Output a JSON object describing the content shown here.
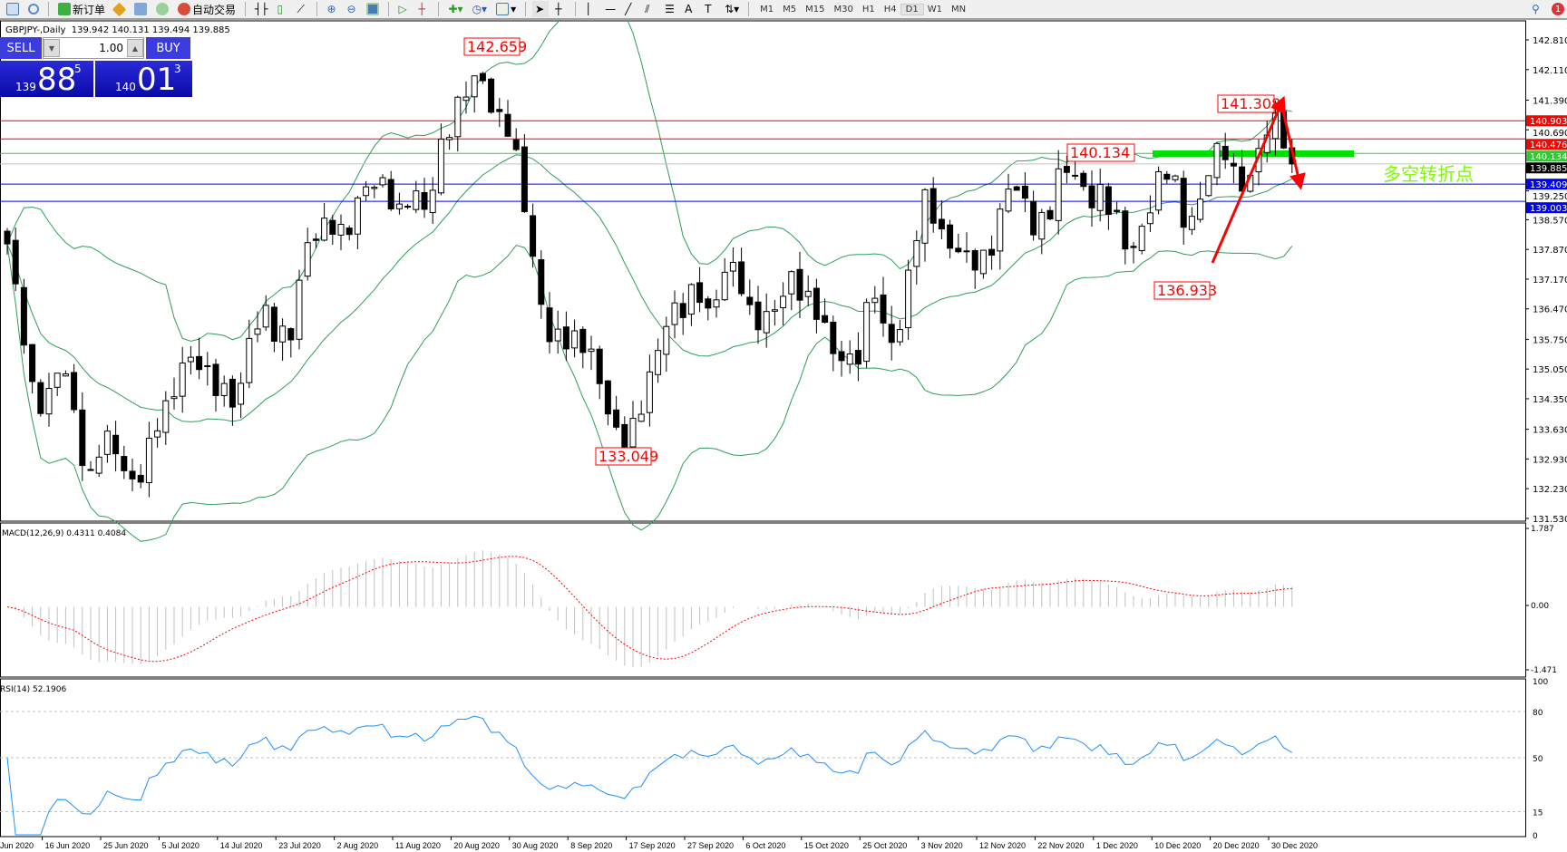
{
  "toolbar": {
    "new_order": "新订单",
    "auto_trading": "自动交易",
    "timeframes": [
      "M1",
      "M5",
      "M15",
      "M30",
      "H1",
      "H4",
      "D1",
      "W1",
      "MN"
    ],
    "active_timeframe": "D1",
    "notifications": "1"
  },
  "header": {
    "symbol": "GBPJPY-,Daily",
    "open": "139.942",
    "high": "140.131",
    "low": "139.494",
    "close": "139.885"
  },
  "trade_panel": {
    "sell_label": "SELL",
    "buy_label": "BUY",
    "volume": "1.00",
    "sell_big": "139",
    "sell_main": "88",
    "sell_sup": "5",
    "buy_big": "140",
    "buy_main": "01",
    "buy_sup": "3"
  },
  "chart_data": {
    "type": "candlestick",
    "symbol": "GBPJPY",
    "timeframe": "Daily",
    "ylim": [
      131.53,
      142.81
    ],
    "price_ticks": [
      "142.810",
      "142.110",
      "141.390",
      "140.690",
      "139.250",
      "138.570",
      "137.870",
      "137.170",
      "136.470",
      "135.750",
      "135.050",
      "134.350",
      "133.630",
      "132.930",
      "132.230",
      "131.530"
    ],
    "closes": [
      138.0,
      136.3,
      134.2,
      134.3,
      135.4,
      133.9,
      132.2,
      133.5,
      133.2,
      132.3,
      132.6,
      133.8,
      134.2,
      135.2,
      135.3,
      134.8,
      134.5,
      134.2,
      135.9,
      136.4,
      135.8,
      135.9,
      137.9,
      138.3,
      138.5,
      138.1,
      139.1,
      139.5,
      139.3,
      138.7,
      139.3,
      138.7,
      140.2,
      141.0,
      141.7,
      142.0,
      141.0,
      140.8,
      139.5,
      137.3,
      135.8,
      135.8,
      135.7,
      135.6,
      134.5,
      133.5,
      133.4,
      134.3,
      135.4,
      136.4,
      136.5,
      137.0,
      136.2,
      137.4,
      137.4,
      136.2,
      136.2,
      136.6,
      137.2,
      136.7,
      136.4,
      135.5,
      135.2,
      135.4,
      137.2,
      135.6,
      136.0,
      138.0,
      139.2,
      138.2,
      137.9,
      137.7,
      137.5,
      138.1,
      139.4,
      139.2,
      138.3,
      138.7,
      139.9,
      139.6,
      139.0,
      139.2,
      138.6,
      137.7,
      138.4,
      139.4,
      139.9,
      138.5,
      138.7,
      140.0,
      140.3,
      139.3,
      139.6,
      140.7,
      140.9,
      139.885
    ],
    "hlines": [
      {
        "price": "140.903",
        "color": "#ff0000"
      },
      {
        "price": "140.476",
        "color": "#ff0000"
      },
      {
        "price": "140.134",
        "color": "#2ecc40"
      },
      {
        "price": "139.885",
        "color": "#000000"
      },
      {
        "price": "139.409",
        "color": "#0000ff"
      },
      {
        "price": "139.003",
        "color": "#0000ff"
      }
    ],
    "price_labels": [
      "142.659",
      "133.049",
      "140.134",
      "141.308",
      "136.933"
    ],
    "annotation_text": "多空转折点",
    "dates": [
      "Jun 2020",
      "16 Jun 2020",
      "25 Jun 2020",
      "5 Jul 2020",
      "14 Jul 2020",
      "23 Jul 2020",
      "2 Aug 2020",
      "11 Aug 2020",
      "20 Aug 2020",
      "30 Aug 2020",
      "8 Sep 2020",
      "17 Sep 2020",
      "27 Sep 2020",
      "6 Oct 2020",
      "15 Oct 2020",
      "25 Oct 2020",
      "3 Nov 2020",
      "12 Nov 2020",
      "22 Nov 2020",
      "1 Dec 2020",
      "10 Dec 2020",
      "20 Dec 2020",
      "30 Dec 2020"
    ],
    "bull_color": "#ffffff",
    "bear_color": "#000000",
    "bands_color": "#2e9e5a"
  },
  "macd": {
    "label": "MACD(12,26,9) 0.4311 0.4084",
    "ticks": [
      "1.787",
      "0.00",
      "-1.471"
    ],
    "max": 1.787,
    "min": -1.471,
    "hist_color": "#c0c0c0",
    "signal_color": "#ff0000"
  },
  "rsi": {
    "label": "RSI(14) 52.1906",
    "ticks": [
      "100",
      "80",
      "50",
      "15",
      "0"
    ],
    "line_color": "#1e90ff"
  }
}
